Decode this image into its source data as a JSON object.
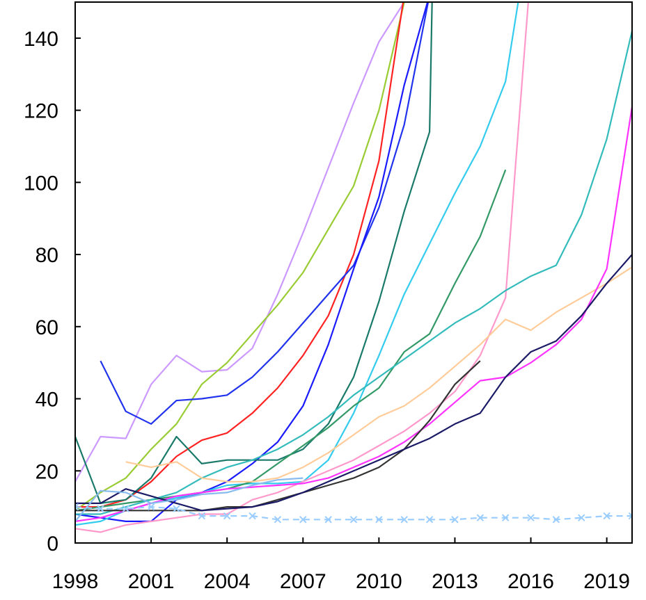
{
  "chart_data": {
    "type": "line",
    "title": "",
    "xlabel": "",
    "ylabel": "",
    "xlim": [
      1998,
      2020
    ],
    "ylim": [
      0,
      150
    ],
    "x_ticks": [
      1998,
      2001,
      2004,
      2007,
      2010,
      2013,
      2016,
      2019
    ],
    "y_ticks": [
      0,
      20,
      40,
      60,
      80,
      100,
      120,
      140
    ],
    "grid": false,
    "legend": "none",
    "series": [
      {
        "color": "#cc99ff",
        "points": [
          [
            1998,
            17
          ],
          [
            1999,
            29.5
          ],
          [
            2000,
            29
          ],
          [
            2001,
            44
          ],
          [
            2002,
            52
          ],
          [
            2003,
            47.5
          ],
          [
            2004,
            48
          ],
          [
            2005,
            54
          ],
          [
            2006,
            69
          ],
          [
            2007,
            86
          ],
          [
            2008,
            104
          ],
          [
            2009,
            122
          ],
          [
            2010,
            139
          ],
          [
            2011,
            150
          ]
        ]
      },
      {
        "color": "#99cc33",
        "points": [
          [
            1998,
            9
          ],
          [
            1999,
            14
          ],
          [
            2000,
            18
          ],
          [
            2001,
            26
          ],
          [
            2002,
            33
          ],
          [
            2003,
            44
          ],
          [
            2004,
            50
          ],
          [
            2005,
            58
          ],
          [
            2006,
            66
          ],
          [
            2007,
            75
          ],
          [
            2008,
            87
          ],
          [
            2009,
            99
          ],
          [
            2010,
            120
          ],
          [
            2011,
            150
          ]
        ]
      },
      {
        "color": "#ff2222",
        "points": [
          [
            1998,
            10
          ],
          [
            1999,
            10
          ],
          [
            2000,
            12
          ],
          [
            2001,
            17
          ],
          [
            2002,
            24
          ],
          [
            2003,
            28.5
          ],
          [
            2004,
            30.5
          ],
          [
            2005,
            36
          ],
          [
            2006,
            43
          ],
          [
            2007,
            52
          ],
          [
            2008,
            63
          ],
          [
            2009,
            80
          ],
          [
            2010,
            106
          ],
          [
            2011,
            152
          ]
        ]
      },
      {
        "color": "#2233ee",
        "points": [
          [
            1999,
            50.5
          ],
          [
            2000,
            36.5
          ],
          [
            2001,
            33
          ],
          [
            2002,
            39.5
          ],
          [
            2003,
            40
          ],
          [
            2004,
            41
          ],
          [
            2005,
            46
          ],
          [
            2006,
            53
          ],
          [
            2007,
            61
          ],
          [
            2008,
            69
          ],
          [
            2009,
            77
          ],
          [
            2010,
            93
          ],
          [
            2011,
            116
          ],
          [
            2012,
            152
          ]
        ]
      },
      {
        "color": "#1a1aff",
        "points": [
          [
            1998,
            8
          ],
          [
            1999,
            7
          ],
          [
            2000,
            6
          ],
          [
            2001,
            6
          ],
          [
            2002,
            12
          ],
          [
            2003,
            14
          ],
          [
            2004,
            17
          ],
          [
            2005,
            22
          ],
          [
            2006,
            28
          ],
          [
            2007,
            38
          ],
          [
            2008,
            55
          ],
          [
            2009,
            76
          ],
          [
            2010,
            96
          ],
          [
            2011,
            127
          ],
          [
            2012,
            152
          ]
        ]
      },
      {
        "color": "#1a7a6a",
        "points": [
          [
            1998,
            29.5
          ],
          [
            1999,
            11
          ],
          [
            2000,
            12
          ],
          [
            2001,
            18
          ],
          [
            2002,
            29.5
          ],
          [
            2003,
            22
          ],
          [
            2004,
            23
          ],
          [
            2005,
            23
          ],
          [
            2006,
            23
          ],
          [
            2007,
            26
          ],
          [
            2008,
            33
          ],
          [
            2009,
            46
          ],
          [
            2010,
            67
          ],
          [
            2011,
            92
          ],
          [
            2012,
            114
          ],
          [
            2012.1,
            150
          ]
        ]
      },
      {
        "color": "#33ccee",
        "points": [
          [
            1998,
            5
          ],
          [
            1999,
            6
          ],
          [
            2000,
            9
          ],
          [
            2001,
            11
          ],
          [
            2002,
            12.5
          ],
          [
            2003,
            14
          ],
          [
            2004,
            16
          ],
          [
            2005,
            16.5
          ],
          [
            2006,
            16.5
          ],
          [
            2007,
            17
          ],
          [
            2008,
            23
          ],
          [
            2009,
            36
          ],
          [
            2010,
            52
          ],
          [
            2011,
            69
          ],
          [
            2012,
            83
          ],
          [
            2013,
            97
          ],
          [
            2014,
            110
          ],
          [
            2015,
            128
          ],
          [
            2015.5,
            150
          ]
        ]
      },
      {
        "color": "#ff99cc",
        "points": [
          [
            1998,
            4
          ],
          [
            1999,
            3
          ],
          [
            2000,
            5
          ],
          [
            2001,
            6
          ],
          [
            2002,
            7
          ],
          [
            2003,
            8
          ],
          [
            2004,
            8
          ],
          [
            2005,
            12
          ],
          [
            2006,
            14
          ],
          [
            2007,
            17
          ],
          [
            2008,
            20
          ],
          [
            2009,
            23
          ],
          [
            2010,
            27
          ],
          [
            2011,
            31
          ],
          [
            2012,
            36
          ],
          [
            2013,
            42
          ],
          [
            2014,
            52
          ],
          [
            2015,
            68
          ],
          [
            2015.4,
            105
          ],
          [
            2015.9,
            150
          ]
        ]
      },
      {
        "color": "#339966",
        "points": [
          [
            1998,
            9
          ],
          [
            1999,
            10
          ],
          [
            2000,
            11
          ],
          [
            2001,
            12
          ],
          [
            2002,
            13
          ],
          [
            2003,
            14
          ],
          [
            2004,
            15
          ],
          [
            2005,
            17
          ],
          [
            2006,
            22
          ],
          [
            2007,
            27
          ],
          [
            2008,
            32
          ],
          [
            2009,
            38
          ],
          [
            2010,
            43
          ],
          [
            2011,
            53
          ],
          [
            2012,
            58
          ],
          [
            2013,
            72
          ],
          [
            2014,
            85
          ],
          [
            2015,
            103.5
          ]
        ]
      },
      {
        "color": "#33bbbb",
        "points": [
          [
            1998,
            8
          ],
          [
            1999,
            8
          ],
          [
            2000,
            10
          ],
          [
            2001,
            12
          ],
          [
            2002,
            14
          ],
          [
            2003,
            18
          ],
          [
            2004,
            21
          ],
          [
            2005,
            23
          ],
          [
            2006,
            26
          ],
          [
            2007,
            30
          ],
          [
            2008,
            35
          ],
          [
            2009,
            41
          ],
          [
            2010,
            46
          ],
          [
            2011,
            51
          ],
          [
            2012,
            56
          ],
          [
            2013,
            61
          ],
          [
            2014,
            65
          ],
          [
            2015,
            70
          ],
          [
            2016,
            74
          ],
          [
            2017,
            77
          ],
          [
            2018,
            91
          ],
          [
            2019,
            112
          ],
          [
            2020,
            142
          ]
        ]
      },
      {
        "color": "#ffcc99",
        "points": [
          [
            2000,
            22.5
          ],
          [
            2001,
            21
          ],
          [
            2002,
            22.5
          ],
          [
            2003,
            18
          ],
          [
            2004,
            17
          ],
          [
            2005,
            17
          ],
          [
            2006,
            18
          ],
          [
            2007,
            21
          ],
          [
            2008,
            25
          ],
          [
            2009,
            30
          ],
          [
            2010,
            35
          ],
          [
            2011,
            38
          ],
          [
            2012,
            43
          ],
          [
            2013,
            49
          ],
          [
            2014,
            55
          ],
          [
            2015,
            62
          ],
          [
            2016,
            59
          ],
          [
            2017,
            64
          ],
          [
            2018,
            68
          ],
          [
            2019,
            72
          ],
          [
            2020,
            76.5
          ]
        ]
      },
      {
        "color": "#ff33ff",
        "points": [
          [
            1998,
            6
          ],
          [
            1999,
            7
          ],
          [
            2000,
            9
          ],
          [
            2001,
            11
          ],
          [
            2002,
            13
          ],
          [
            2003,
            14
          ],
          [
            2004,
            15
          ],
          [
            2005,
            15.5
          ],
          [
            2006,
            16
          ],
          [
            2007,
            16.5
          ],
          [
            2008,
            18
          ],
          [
            2009,
            21
          ],
          [
            2010,
            24
          ],
          [
            2011,
            28
          ],
          [
            2012,
            33
          ],
          [
            2013,
            39
          ],
          [
            2014,
            45
          ],
          [
            2015,
            46
          ],
          [
            2016,
            50
          ],
          [
            2017,
            55
          ],
          [
            2018,
            62
          ],
          [
            2019,
            76
          ],
          [
            2020,
            121
          ]
        ]
      },
      {
        "color": "#333333",
        "points": [
          [
            1998,
            9
          ],
          [
            1999,
            9
          ],
          [
            2000,
            9
          ],
          [
            2001,
            9
          ],
          [
            2002,
            9
          ],
          [
            2003,
            9
          ],
          [
            2004,
            10
          ],
          [
            2005,
            10
          ],
          [
            2006,
            12
          ],
          [
            2007,
            14
          ],
          [
            2008,
            16
          ],
          [
            2009,
            18
          ],
          [
            2010,
            21
          ],
          [
            2011,
            26
          ],
          [
            2012,
            34
          ],
          [
            2013,
            44
          ],
          [
            2014,
            50.5
          ]
        ]
      },
      {
        "color": "#1a1a66",
        "points": [
          [
            1998,
            11
          ],
          [
            1999,
            11
          ],
          [
            2000,
            15
          ],
          [
            2001,
            13
          ],
          [
            2002,
            11
          ],
          [
            2003,
            9
          ],
          [
            2004,
            9.5
          ],
          [
            2005,
            10
          ],
          [
            2006,
            11.5
          ],
          [
            2007,
            14
          ],
          [
            2008,
            17
          ],
          [
            2009,
            20
          ],
          [
            2010,
            23
          ],
          [
            2011,
            26
          ],
          [
            2012,
            29
          ],
          [
            2013,
            33
          ],
          [
            2014,
            36
          ],
          [
            2015,
            46
          ],
          [
            2016,
            53
          ],
          [
            2017,
            56
          ],
          [
            2018,
            63
          ],
          [
            2019,
            72
          ],
          [
            2020,
            80
          ]
        ]
      },
      {
        "color": "#88bbee",
        "points": [
          [
            1998,
            6
          ],
          [
            1999,
            14.5
          ],
          [
            2000,
            14
          ],
          [
            2001,
            11
          ],
          [
            2002,
            12
          ],
          [
            2003,
            13.5
          ],
          [
            2004,
            14
          ],
          [
            2005,
            16
          ],
          [
            2006,
            17.5
          ],
          [
            2007,
            18
          ]
        ]
      },
      {
        "color": "#99ccff",
        "dashed": true,
        "marker": "x",
        "points": [
          [
            1998,
            10
          ],
          [
            1999,
            9.5
          ],
          [
            2000,
            9.5
          ],
          [
            2001,
            10
          ],
          [
            2002,
            9.5
          ],
          [
            2003,
            7.5
          ],
          [
            2004,
            7.5
          ],
          [
            2005,
            7.5
          ],
          [
            2006,
            6.5
          ],
          [
            2007,
            6.5
          ],
          [
            2008,
            6.5
          ],
          [
            2009,
            6.5
          ],
          [
            2010,
            6.5
          ],
          [
            2011,
            6.5
          ],
          [
            2012,
            6.5
          ],
          [
            2013,
            6.5
          ],
          [
            2014,
            7
          ],
          [
            2015,
            7
          ],
          [
            2016,
            7
          ],
          [
            2017,
            6.5
          ],
          [
            2018,
            7
          ],
          [
            2019,
            7.5
          ],
          [
            2020,
            7.5
          ]
        ]
      }
    ]
  }
}
